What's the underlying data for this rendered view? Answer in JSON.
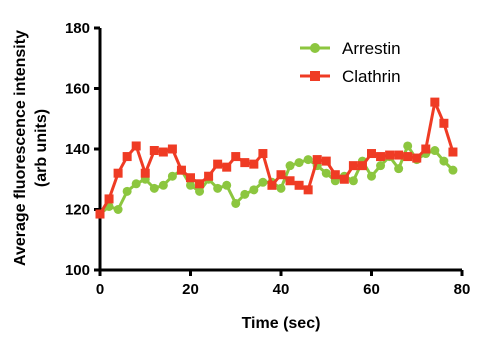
{
  "chart_data": {
    "type": "line",
    "title": "",
    "xlabel": "Time (sec)",
    "ylabel_line1": "Average fluorescence intensity",
    "ylabel_line2": "(arb units)",
    "xlim": [
      0,
      80
    ],
    "ylim": [
      100,
      180
    ],
    "xticks": [
      0,
      20,
      40,
      60,
      80
    ],
    "yticks": [
      100,
      120,
      140,
      160,
      180
    ],
    "grid": false,
    "legend_position": "top-right",
    "series": [
      {
        "name": "Arrestin",
        "color": "#8cc63f",
        "marker": "circle",
        "x": [
          0,
          2,
          4,
          6,
          8,
          10,
          12,
          14,
          16,
          18,
          20,
          22,
          24,
          26,
          28,
          30,
          32,
          34,
          36,
          38,
          40,
          42,
          44,
          46,
          48,
          50,
          52,
          54,
          56,
          58,
          60,
          62,
          64,
          66,
          68,
          70,
          72,
          74,
          76,
          78
        ],
        "values": [
          118.5,
          121,
          120,
          126,
          128.5,
          130,
          127,
          128,
          131,
          133,
          128,
          126,
          130,
          127,
          128,
          122,
          125,
          126.5,
          129,
          129,
          127,
          134.5,
          135.5,
          136.5,
          134.5,
          132,
          129.5,
          131,
          129.5,
          136,
          131,
          134.5,
          137.5,
          133.5,
          141,
          136.5,
          138.5,
          139.5,
          136,
          133
        ]
      },
      {
        "name": "Clathrin",
        "color": "#ef3b24",
        "marker": "square",
        "x": [
          0,
          2,
          4,
          6,
          8,
          10,
          12,
          14,
          16,
          18,
          20,
          22,
          24,
          26,
          28,
          30,
          32,
          34,
          36,
          38,
          40,
          42,
          44,
          46,
          48,
          50,
          52,
          54,
          56,
          58,
          60,
          62,
          64,
          66,
          68,
          70,
          72,
          74,
          76,
          78
        ],
        "values": [
          118.5,
          123.5,
          132,
          137.5,
          141,
          132,
          139.5,
          139,
          140,
          133,
          130.5,
          128.5,
          131,
          135,
          134,
          137.5,
          135.5,
          135,
          138.5,
          128,
          131.5,
          129.5,
          128,
          126.5,
          136.5,
          136,
          131.5,
          130,
          134.5,
          134.5,
          138.5,
          137.5,
          138,
          138,
          137.5,
          137,
          140,
          155.5,
          148.5,
          139
        ]
      }
    ]
  }
}
